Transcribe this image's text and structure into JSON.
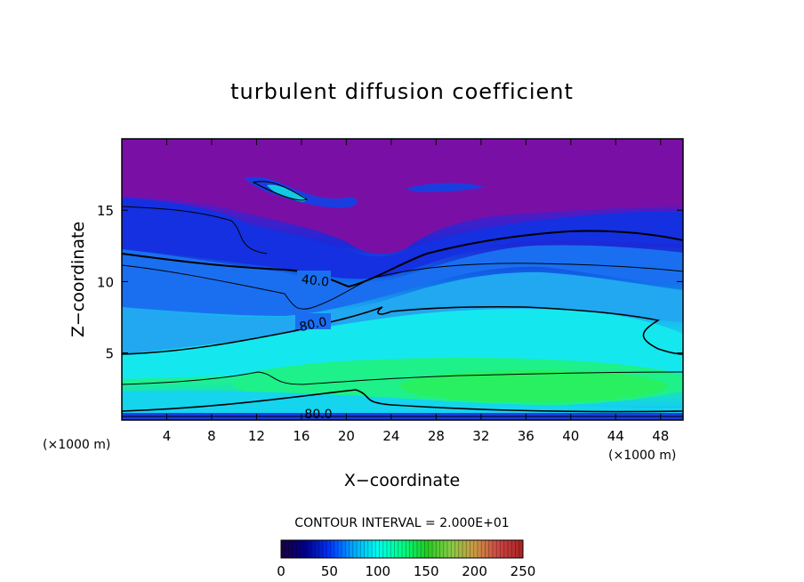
{
  "chart_data": {
    "type": "heatmap",
    "title": "turbulent diffusion coefficient",
    "xlabel": "X−coordinate",
    "ylabel": "Z−coordinate",
    "x_unit": "(×1000 m)",
    "z_unit": "(×1000 m)",
    "xlim": [
      0,
      50
    ],
    "ylim": [
      0.3,
      20
    ],
    "x_ticks": [
      "4",
      "8",
      "12",
      "16",
      "20",
      "24",
      "28",
      "32",
      "36",
      "40",
      "44",
      "48"
    ],
    "y_ticks": [
      "5",
      "10",
      "15"
    ],
    "contour_interval_text": "CONTOUR INTERVAL = 2.000E+01",
    "contour_labels": [
      "40.0",
      "80.0",
      "80.0"
    ],
    "colorbar": {
      "range": [
        0,
        250
      ],
      "tick_labels": [
        "0",
        "50",
        "100",
        "150",
        "200",
        "250"
      ],
      "colors": [
        "#1a0040",
        "#000088",
        "#0033ff",
        "#00aaff",
        "#00ffee",
        "#00ff88",
        "#22cc22",
        "#88cc44",
        "#cc9944",
        "#cc4444",
        "#aa2222"
      ]
    },
    "value_colors": {
      "upper_layer": "#7a0fa6",
      "mid_blue": "#0a3dde",
      "light_blue": "#21a8f0",
      "cyan": "#14eaf0",
      "green_core": "#14f088",
      "bright_green": "#1ef060",
      "surface": "#1a2ad8"
    }
  }
}
